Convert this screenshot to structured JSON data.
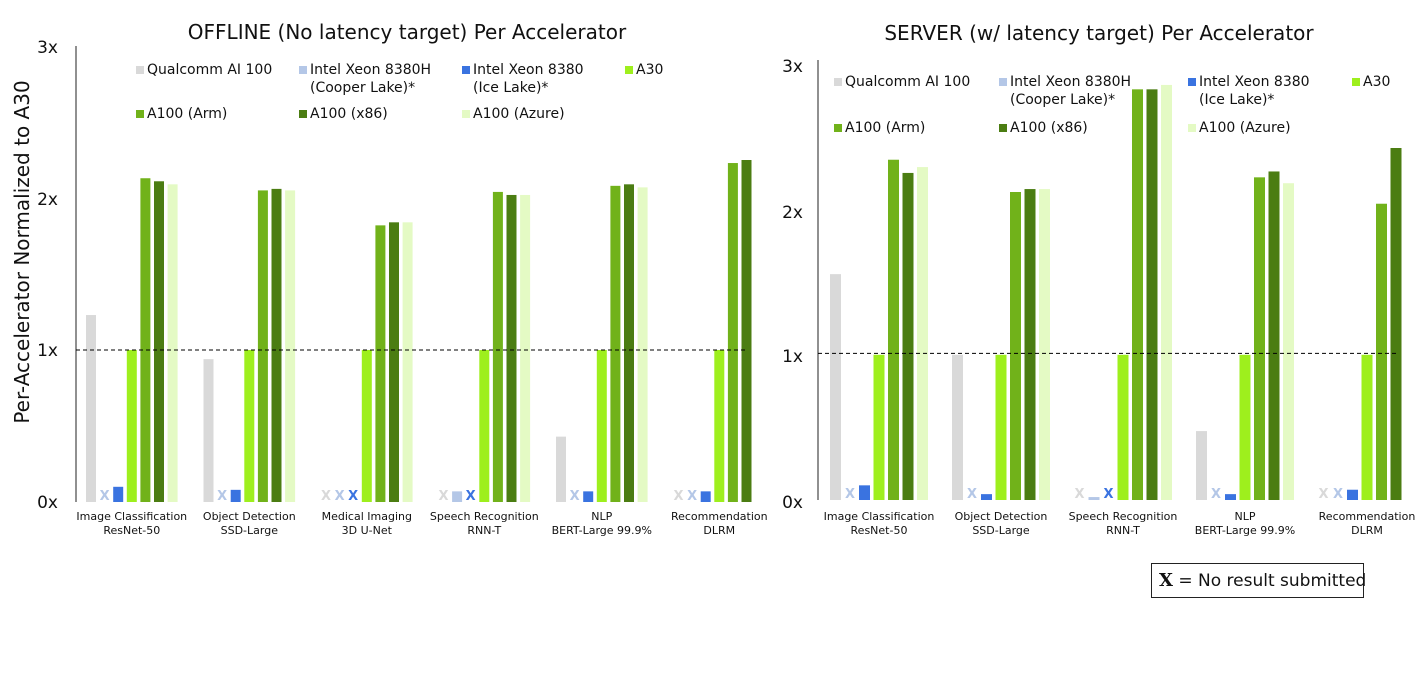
{
  "y_axis_label": "Per-Accelerator Normalized to A30",
  "note": {
    "symbol": "X",
    "text": "= No result submitted"
  },
  "x_mark_symbol": "X",
  "colors": {
    "qualcomm": "#d9d9d9",
    "xeon_8380h": "#b4c7e7",
    "xeon_8380": "#3a73e0",
    "a30": "#9eef1d",
    "a100_arm": "#71b21a",
    "a100_x86": "#4b7d12",
    "a100_azure": "#e4fac4",
    "baseline": "#000000"
  },
  "chart_data": [
    {
      "type": "bar",
      "title": "OFFLINE (No latency target) Per Accelerator",
      "ylabel": "Per-Accelerator Normalized to A30",
      "ylim": [
        0,
        3
      ],
      "yticks": [
        "0x",
        "1x",
        "2x",
        "3x"
      ],
      "baseline": 1,
      "categories": [
        [
          "Image Classification",
          "ResNet-50"
        ],
        [
          "Object Detection",
          "SSD-Large"
        ],
        [
          "Medical Imaging",
          "3D U-Net"
        ],
        [
          "Speech Recognition",
          "RNN-T"
        ],
        [
          "NLP",
          "BERT-Large 99.9%"
        ],
        [
          "Recommendation",
          "DLRM"
        ]
      ],
      "legend": [
        [
          "Qualcomm AI 100"
        ],
        [
          "Intel Xeon 8380H",
          "(Cooper Lake)*"
        ],
        [
          "Intel Xeon 8380",
          "(Ice Lake)*"
        ],
        [
          "A30"
        ],
        [
          "A100 (Arm)"
        ],
        [
          "A100 (x86)"
        ],
        [
          "A100 (Azure)"
        ]
      ],
      "series": [
        {
          "name": "Qualcomm AI 100",
          "color_key": "qualcomm",
          "values": [
            1.23,
            0.94,
            null,
            null,
            0.43,
            null
          ]
        },
        {
          "name": "Intel Xeon 8380H (Cooper Lake)*",
          "color_key": "xeon_8380h",
          "values": [
            null,
            null,
            null,
            0.07,
            null,
            null
          ]
        },
        {
          "name": "Intel Xeon 8380 (Ice Lake)*",
          "color_key": "xeon_8380",
          "values": [
            0.1,
            0.08,
            null,
            null,
            0.07,
            0.07
          ]
        },
        {
          "name": "A30",
          "color_key": "a30",
          "values": [
            1.0,
            1.0,
            1.0,
            1.0,
            1.0,
            1.0
          ]
        },
        {
          "name": "A100 (Arm)",
          "color_key": "a100_arm",
          "values": [
            2.13,
            2.05,
            1.82,
            2.04,
            2.08,
            2.23
          ]
        },
        {
          "name": "A100 (x86)",
          "color_key": "a100_x86",
          "values": [
            2.11,
            2.06,
            1.84,
            2.02,
            2.09,
            2.25
          ]
        },
        {
          "name": "A100 (Azure)",
          "color_key": "a100_azure",
          "values": [
            2.09,
            2.05,
            1.84,
            2.02,
            2.07,
            null
          ]
        }
      ]
    },
    {
      "type": "bar",
      "title": "SERVER (w/ latency target) Per Accelerator",
      "ylabel": "",
      "ylim": [
        0,
        3
      ],
      "yticks": [
        "0x",
        "1x",
        "2x",
        "3x"
      ],
      "baseline": 1,
      "categories": [
        [
          "Image Classification",
          "ResNet-50"
        ],
        [
          "Object Detection",
          "SSD-Large"
        ],
        [
          "Speech Recognition",
          "RNN-T"
        ],
        [
          "NLP",
          "BERT-Large 99.9%"
        ],
        [
          "Recommendation",
          "DLRM"
        ]
      ],
      "legend": [
        [
          "Qualcomm AI 100"
        ],
        [
          "Intel Xeon 8380H",
          "(Cooper Lake)*"
        ],
        [
          "Intel Xeon 8380",
          "(Ice Lake)*"
        ],
        [
          "A30"
        ],
        [
          "A100 (Arm)"
        ],
        [
          "A100 (x86)"
        ],
        [
          "A100 (Azure)"
        ]
      ],
      "series": [
        {
          "name": "Qualcomm AI 100",
          "color_key": "qualcomm",
          "values": [
            1.54,
            0.99,
            null,
            0.47,
            null
          ]
        },
        {
          "name": "Intel Xeon 8380H (Cooper Lake)*",
          "color_key": "xeon_8380h",
          "values": [
            null,
            null,
            0.02,
            null,
            null
          ]
        },
        {
          "name": "Intel Xeon 8380 (Ice Lake)*",
          "color_key": "xeon_8380",
          "values": [
            0.1,
            0.04,
            null,
            0.04,
            0.07
          ]
        },
        {
          "name": "A30",
          "color_key": "a30",
          "values": [
            0.99,
            0.99,
            0.99,
            0.99,
            0.99
          ]
        },
        {
          "name": "A100 (Arm)",
          "color_key": "a100_arm",
          "values": [
            2.32,
            2.1,
            2.8,
            2.2,
            2.02
          ]
        },
        {
          "name": "A100 (x86)",
          "color_key": "a100_x86",
          "values": [
            2.23,
            2.12,
            2.8,
            2.24,
            2.4
          ]
        },
        {
          "name": "A100 (Azure)",
          "color_key": "a100_azure",
          "values": [
            2.27,
            2.12,
            2.83,
            2.16,
            null
          ]
        }
      ]
    }
  ]
}
